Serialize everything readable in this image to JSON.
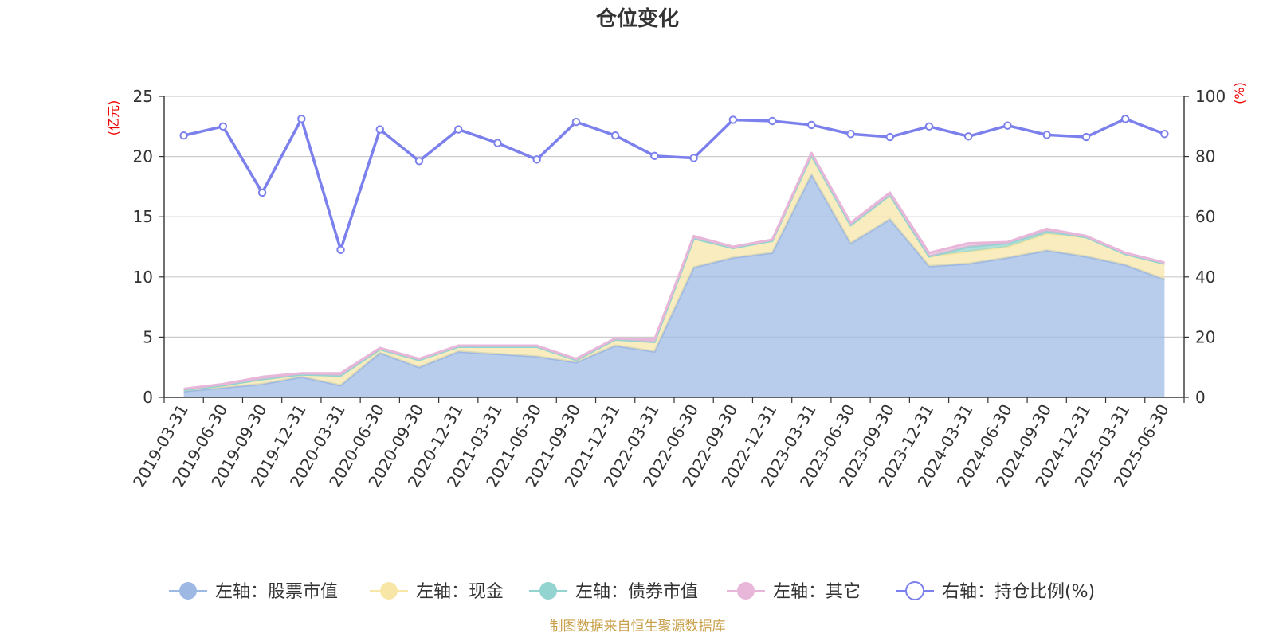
{
  "chart_data": {
    "type": "area",
    "title": "仓位变化",
    "left_unit": "(亿元)",
    "right_unit": "(%)",
    "categories": [
      "2019-03-31",
      "2019-06-30",
      "2019-09-30",
      "2019-12-31",
      "2020-03-31",
      "2020-06-30",
      "2020-09-30",
      "2020-12-31",
      "2021-03-31",
      "2021-06-30",
      "2021-09-30",
      "2021-12-31",
      "2022-03-31",
      "2022-06-30",
      "2022-09-30",
      "2022-12-31",
      "2023-03-31",
      "2023-06-30",
      "2023-09-30",
      "2023-12-31",
      "2024-03-31",
      "2024-06-30",
      "2024-09-30",
      "2024-12-31",
      "2025-03-31",
      "2025-06-30"
    ],
    "ylim_left": [
      0,
      25
    ],
    "yticks_left": [
      0,
      5,
      10,
      15,
      20,
      25
    ],
    "ylim_right": [
      0,
      100
    ],
    "yticks_right": [
      0,
      20,
      40,
      60,
      80,
      100
    ],
    "grid": true,
    "legend_position": "bottom",
    "series": [
      {
        "name": "左轴：股票市值",
        "axis": "left",
        "stack": true,
        "color": "#9cb8e3",
        "values": [
          0.5,
          0.8,
          1.1,
          1.7,
          1.0,
          3.7,
          2.5,
          3.8,
          3.6,
          3.4,
          2.9,
          4.3,
          3.8,
          10.8,
          11.6,
          12.0,
          18.5,
          12.8,
          14.8,
          10.9,
          11.1,
          11.6,
          12.2,
          11.7,
          11.0,
          9.8
        ]
      },
      {
        "name": "左轴：现金",
        "axis": "left",
        "stack": true,
        "color": "#f7e6a6",
        "values": [
          0.1,
          0.2,
          0.4,
          0.2,
          0.8,
          0.3,
          0.6,
          0.4,
          0.6,
          0.8,
          0.2,
          0.5,
          0.8,
          2.4,
          0.8,
          1.0,
          1.6,
          1.5,
          2.0,
          0.8,
          1.0,
          0.9,
          1.4,
          1.6,
          0.9,
          1.3
        ]
      },
      {
        "name": "左轴：债券市值",
        "axis": "left",
        "stack": true,
        "color": "#93d4d0",
        "values": [
          0,
          0,
          0,
          0,
          0,
          0,
          0,
          0,
          0,
          0,
          0,
          0,
          0,
          0,
          0,
          0,
          0,
          0,
          0,
          0,
          0.4,
          0.3,
          0.2,
          0,
          0,
          0
        ]
      },
      {
        "name": "左轴：其它",
        "axis": "left",
        "stack": true,
        "color": "#e8b6d8",
        "values": [
          0.1,
          0.1,
          0.2,
          0.1,
          0.2,
          0.1,
          0.1,
          0.1,
          0.1,
          0.1,
          0.1,
          0.1,
          0.2,
          0.2,
          0.1,
          0.1,
          0.2,
          0.2,
          0.2,
          0.3,
          0.3,
          0.1,
          0.2,
          0.1,
          0.1,
          0.1
        ]
      },
      {
        "name": "右轴：持仓比例(%)",
        "axis": "right",
        "stack": false,
        "color": "#7b80ec",
        "values": [
          87,
          90,
          68,
          92.5,
          49,
          89,
          78.5,
          89,
          84.5,
          79,
          91.5,
          87,
          80.2,
          79.5,
          92.2,
          91.8,
          90.5,
          87.5,
          86.5,
          90,
          86.7,
          90.3,
          87.2,
          86.5,
          92.5,
          87.5
        ]
      }
    ]
  },
  "source_note": "制图数据来自恒生聚源数据库"
}
